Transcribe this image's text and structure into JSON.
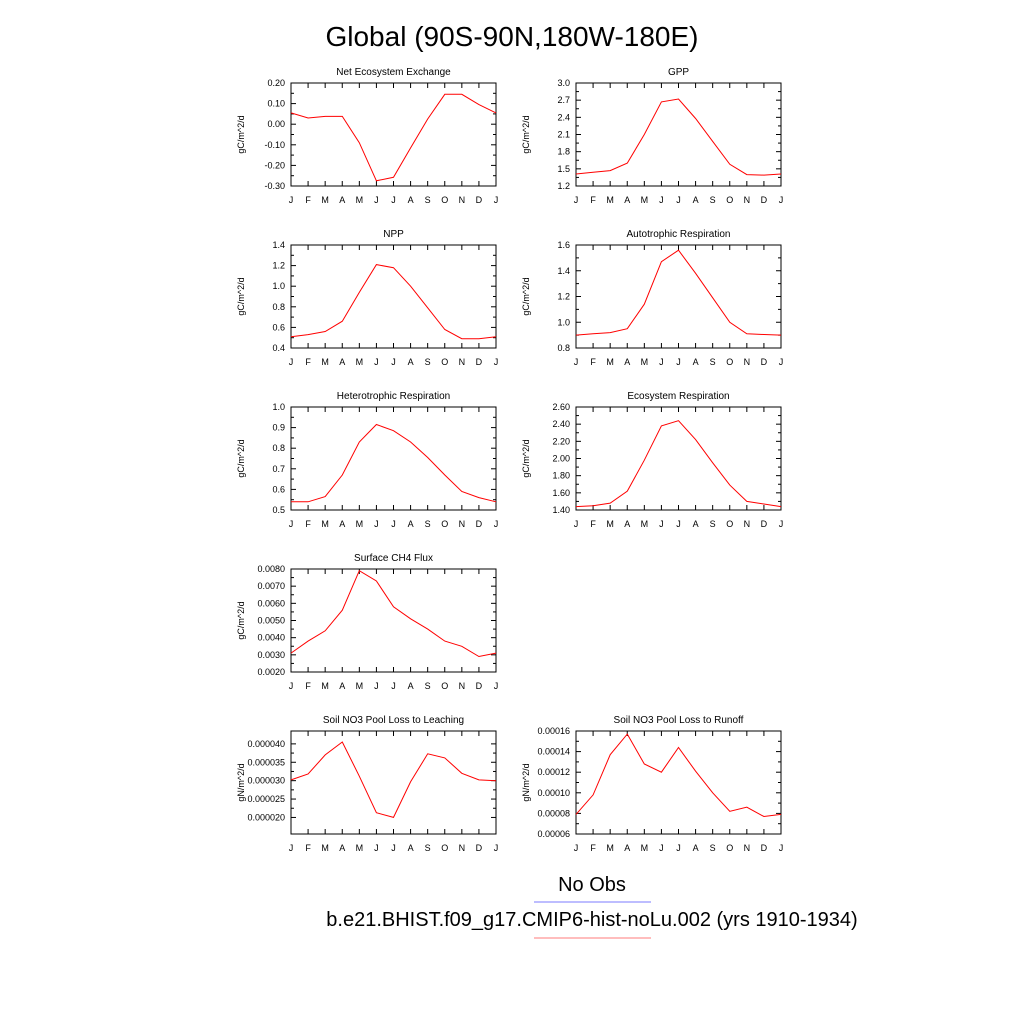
{
  "title": "Global (90S-90N,180W-180E)",
  "months": [
    "J",
    "F",
    "M",
    "A",
    "M",
    "J",
    "J",
    "A",
    "S",
    "O",
    "N",
    "D",
    "J"
  ],
  "legend": [
    {
      "label": "No Obs",
      "color": "#7b7bff"
    },
    {
      "label": "b.e21.BHIST.f09_g17.CMIP6-hist-noLu.002 (yrs 1910-1934)",
      "color": "#ff7b7b"
    }
  ],
  "line_color": "#ff0000",
  "chart_data": [
    {
      "type": "line",
      "title": "Net Ecosystem Exchange",
      "ylabel": "gC/m^2/d",
      "ylim": [
        -0.3,
        0.2
      ],
      "yticks": [
        "0.20",
        "0.10",
        "0.00",
        "-0.10",
        "-0.20",
        "-0.30"
      ],
      "ytick_values": [
        0.2,
        0.1,
        0.0,
        -0.1,
        -0.2,
        -0.3
      ],
      "x": [
        "J",
        "F",
        "M",
        "A",
        "M",
        "J",
        "J",
        "A",
        "S",
        "O",
        "N",
        "D",
        "J"
      ],
      "values": [
        0.055,
        0.03,
        0.038,
        0.038,
        -0.09,
        -0.275,
        -0.258,
        -0.115,
        0.025,
        0.145,
        0.145,
        0.095,
        0.055
      ]
    },
    {
      "type": "line",
      "title": "GPP",
      "ylabel": "gC/m^2/d",
      "ylim": [
        1.2,
        3.0
      ],
      "yticks": [
        "3.0",
        "2.7",
        "2.4",
        "2.1",
        "1.8",
        "1.5",
        "1.2"
      ],
      "ytick_values": [
        3.0,
        2.7,
        2.4,
        2.1,
        1.8,
        1.5,
        1.2
      ],
      "x": [
        "J",
        "F",
        "M",
        "A",
        "M",
        "J",
        "J",
        "A",
        "S",
        "O",
        "N",
        "D",
        "J"
      ],
      "values": [
        1.41,
        1.44,
        1.47,
        1.6,
        2.1,
        2.67,
        2.72,
        2.38,
        1.98,
        1.58,
        1.4,
        1.39,
        1.41
      ]
    },
    {
      "type": "line",
      "title": "NPP",
      "ylabel": "gC/m^2/d",
      "ylim": [
        0.4,
        1.4
      ],
      "yticks": [
        "1.4",
        "1.2",
        "1.0",
        "0.8",
        "0.6",
        "0.4"
      ],
      "ytick_values": [
        1.4,
        1.2,
        1.0,
        0.8,
        0.6,
        0.4
      ],
      "x": [
        "J",
        "F",
        "M",
        "A",
        "M",
        "J",
        "J",
        "A",
        "S",
        "O",
        "N",
        "D",
        "J"
      ],
      "values": [
        0.51,
        0.53,
        0.56,
        0.66,
        0.94,
        1.21,
        1.18,
        1.0,
        0.79,
        0.58,
        0.49,
        0.49,
        0.51
      ]
    },
    {
      "type": "line",
      "title": "Autotrophic Respiration",
      "ylabel": "gC/m^2/d",
      "ylim": [
        0.8,
        1.6
      ],
      "yticks": [
        "1.6",
        "1.4",
        "1.2",
        "1.0",
        "0.8"
      ],
      "ytick_values": [
        1.6,
        1.4,
        1.2,
        1.0,
        0.8
      ],
      "x": [
        "J",
        "F",
        "M",
        "A",
        "M",
        "J",
        "J",
        "A",
        "S",
        "O",
        "N",
        "D",
        "J"
      ],
      "values": [
        0.9,
        0.91,
        0.92,
        0.95,
        1.14,
        1.47,
        1.56,
        1.38,
        1.19,
        1.0,
        0.91,
        0.905,
        0.9
      ]
    },
    {
      "type": "line",
      "title": "Heterotrophic Respiration",
      "ylabel": "gC/m^2/d",
      "ylim": [
        0.5,
        1.0
      ],
      "yticks": [
        "1.0",
        "0.9",
        "0.8",
        "0.7",
        "0.6",
        "0.5"
      ],
      "ytick_values": [
        1.0,
        0.9,
        0.8,
        0.7,
        0.6,
        0.5
      ],
      "x": [
        "J",
        "F",
        "M",
        "A",
        "M",
        "J",
        "J",
        "A",
        "S",
        "O",
        "N",
        "D",
        "J"
      ],
      "values": [
        0.54,
        0.54,
        0.565,
        0.67,
        0.83,
        0.915,
        0.885,
        0.83,
        0.755,
        0.67,
        0.59,
        0.56,
        0.54
      ]
    },
    {
      "type": "line",
      "title": "Ecosystem Respiration",
      "ylabel": "gC/m^2/d",
      "ylim": [
        1.4,
        2.6
      ],
      "yticks": [
        "2.60",
        "2.40",
        "2.20",
        "2.00",
        "1.80",
        "1.60",
        "1.40"
      ],
      "ytick_values": [
        2.6,
        2.4,
        2.2,
        2.0,
        1.8,
        1.6,
        1.4
      ],
      "x": [
        "J",
        "F",
        "M",
        "A",
        "M",
        "J",
        "J",
        "A",
        "S",
        "O",
        "N",
        "D",
        "J"
      ],
      "values": [
        1.44,
        1.45,
        1.48,
        1.62,
        1.98,
        2.38,
        2.44,
        2.22,
        1.95,
        1.69,
        1.5,
        1.47,
        1.44
      ]
    },
    {
      "type": "line",
      "title": "Surface CH4 Flux",
      "ylabel": "gC/m^2/d",
      "ylim": [
        0.002,
        0.008
      ],
      "yticks": [
        "0.0080",
        "0.0070",
        "0.0060",
        "0.0050",
        "0.0040",
        "0.0030",
        "0.0020"
      ],
      "ytick_values": [
        0.008,
        0.007,
        0.006,
        0.005,
        0.004,
        0.003,
        0.002
      ],
      "x": [
        "J",
        "F",
        "M",
        "A",
        "M",
        "J",
        "J",
        "A",
        "S",
        "O",
        "N",
        "D",
        "J"
      ],
      "values": [
        0.0031,
        0.0038,
        0.0044,
        0.0056,
        0.0079,
        0.0073,
        0.0058,
        0.0051,
        0.0045,
        0.0038,
        0.0035,
        0.0029,
        0.0031
      ]
    },
    {
      "type": "line",
      "title": "Soil NO3 Pool Loss to Leaching",
      "ylabel": "gN/m^2/d",
      "ylim": [
        1.55e-05,
        4.35e-05
      ],
      "yticks": [
        "0.000040",
        "0.000035",
        "0.000030",
        "0.000025",
        "0.000020"
      ],
      "ytick_values": [
        4e-05,
        3.5e-05,
        3e-05,
        2.5e-05,
        2e-05
      ],
      "x": [
        "J",
        "F",
        "M",
        "A",
        "M",
        "J",
        "J",
        "A",
        "S",
        "O",
        "N",
        "D",
        "J"
      ],
      "values": [
        3.02e-05,
        3.18e-05,
        3.7e-05,
        4.05e-05,
        3.12e-05,
        2.13e-05,
        2e-05,
        2.97e-05,
        3.73e-05,
        3.62e-05,
        3.2e-05,
        3.02e-05,
        3e-05
      ]
    },
    {
      "type": "line",
      "title": "Soil NO3 Pool Loss to Runoff",
      "ylabel": "gN/m^2/d",
      "ylim": [
        6e-05,
        0.00016
      ],
      "yticks": [
        "0.00016",
        "0.00014",
        "0.00012",
        "0.00010",
        "0.00008",
        "0.00006"
      ],
      "ytick_values": [
        0.00016,
        0.00014,
        0.00012,
        0.0001,
        8e-05,
        6e-05
      ],
      "x": [
        "J",
        "F",
        "M",
        "A",
        "M",
        "J",
        "J",
        "A",
        "S",
        "O",
        "N",
        "D",
        "J"
      ],
      "values": [
        7.9e-05,
        9.8e-05,
        0.000137,
        0.000157,
        0.000128,
        0.00012,
        0.000144,
        0.000121,
        0.0001,
        8.2e-05,
        8.6e-05,
        7.7e-05,
        7.9e-05
      ]
    }
  ]
}
